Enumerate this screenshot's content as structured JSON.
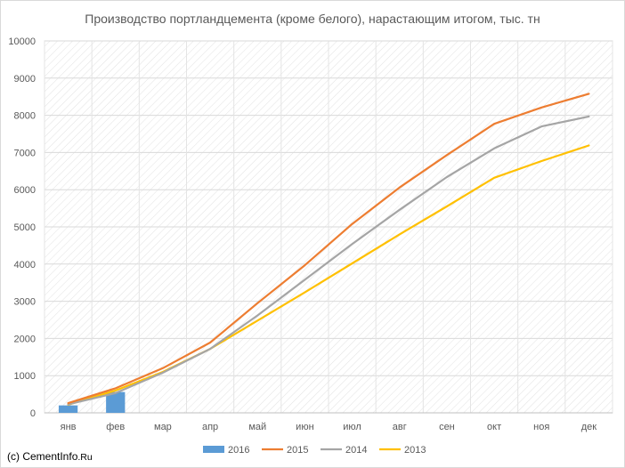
{
  "chart_data": {
    "type": "bar+line",
    "title": "Производство портландцемента (кроме белого), нарастающим итогом, тыс. тн",
    "categories": [
      "янв",
      "фев",
      "мар",
      "апр",
      "май",
      "июн",
      "июл",
      "авг",
      "сен",
      "окт",
      "ноя",
      "дек"
    ],
    "ylim": [
      0,
      10000
    ],
    "yticks": [
      0,
      1000,
      2000,
      3000,
      4000,
      5000,
      6000,
      7000,
      8000,
      9000,
      10000
    ],
    "grid": true,
    "legend_position": "bottom",
    "series": [
      {
        "name": "2016",
        "kind": "bar",
        "color": "#5B9BD5",
        "values": [
          200,
          560,
          null,
          null,
          null,
          null,
          null,
          null,
          null,
          null,
          null,
          null
        ]
      },
      {
        "name": "2015",
        "kind": "line",
        "color": "#ED7D31",
        "values": [
          260,
          660,
          1200,
          1890,
          2950,
          3970,
          5080,
          6060,
          6930,
          7770,
          8210,
          8580
        ]
      },
      {
        "name": "2014",
        "kind": "line",
        "color": "#A5A5A5",
        "values": [
          230,
          530,
          1080,
          1720,
          2620,
          3580,
          4540,
          5460,
          6340,
          7110,
          7700,
          7970
        ]
      },
      {
        "name": "2013",
        "kind": "line",
        "color": "#FFC000",
        "values": [
          220,
          600,
          1100,
          1720,
          2480,
          3240,
          4020,
          4800,
          5550,
          6320,
          6770,
          7190
        ]
      }
    ]
  },
  "credit": {
    "prefix": "(с) ",
    "main": "CementInfo",
    "suffix": ".Ru"
  }
}
